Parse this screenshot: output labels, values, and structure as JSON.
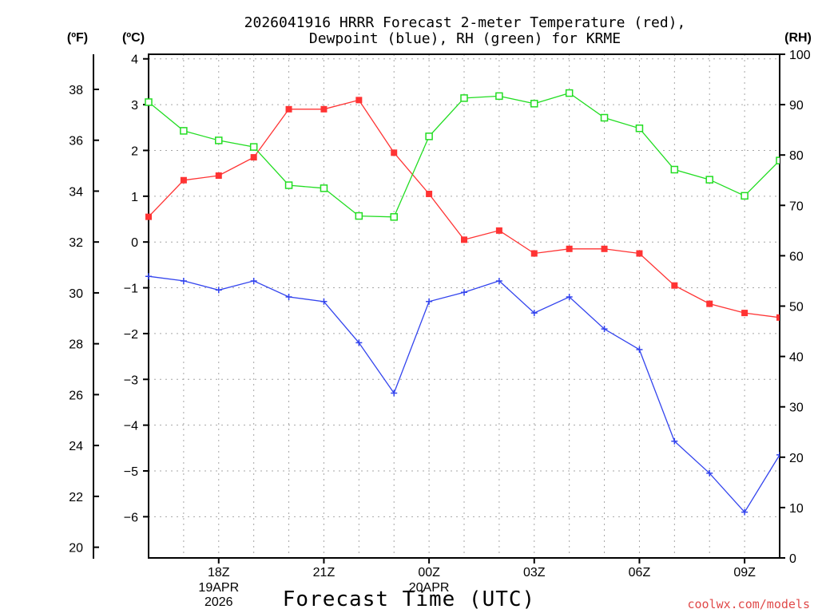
{
  "chart_data": {
    "type": "line",
    "title_line1": "2026041916 HRRR Forecast 2-meter Temperature (red),",
    "title_line2": "Dewpoint (blue), RH (green) for KRME",
    "xlabel": "Forecast Time (UTC)",
    "watermark": "coolwx.com/models",
    "unit_left_f": "(ºF)",
    "unit_left_c": "(ºC)",
    "unit_right": "(RH)",
    "x_hours": [
      16,
      17,
      18,
      19,
      20,
      21,
      22,
      23,
      24,
      25,
      26,
      27,
      28,
      29,
      30,
      31,
      32,
      33,
      34
    ],
    "xlim": [
      16,
      34
    ],
    "ylim_c": [
      -6.9,
      4.1
    ],
    "ylim_rh": [
      0,
      100
    ],
    "yticks_c": [
      "4",
      "3",
      "2",
      "1",
      "0",
      "-1",
      "-2",
      "-3",
      "-4",
      "-5",
      "-6"
    ],
    "yticks_f": [
      "38",
      "36",
      "34",
      "32",
      "30",
      "28",
      "26",
      "24",
      "22",
      "20"
    ],
    "yticks_rh": [
      "100",
      "90",
      "80",
      "70",
      "60",
      "50",
      "40",
      "30",
      "20",
      "10",
      "0"
    ],
    "x_ticks": [
      {
        "hour": 18,
        "label": "18Z"
      },
      {
        "hour": 21,
        "label": "21Z"
      },
      {
        "hour": 24,
        "label": "00Z"
      },
      {
        "hour": 27,
        "label": "03Z"
      },
      {
        "hour": 30,
        "label": "06Z"
      },
      {
        "hour": 33,
        "label": "09Z"
      }
    ],
    "date_labels": [
      {
        "hour": 18,
        "lines": [
          "19APR",
          "2026"
        ]
      },
      {
        "hour": 24,
        "lines": [
          "20APR"
        ]
      }
    ],
    "series": [
      {
        "name": "Temperature",
        "color": "#ff3333",
        "axis": "c",
        "marker": "filled-square",
        "values": [
          0.55,
          1.35,
          1.45,
          1.85,
          2.9,
          2.9,
          3.1,
          1.95,
          1.05,
          0.05,
          0.25,
          -0.25,
          -0.15,
          -0.15,
          -0.25,
          -0.95,
          -1.35,
          -1.55,
          -1.65
        ]
      },
      {
        "name": "Dewpoint",
        "color": "#3344ee",
        "axis": "c",
        "marker": "plus",
        "values": [
          -0.75,
          -0.85,
          -1.05,
          -0.85,
          -1.2,
          -1.3,
          -2.2,
          -3.3,
          -1.3,
          -1.1,
          -0.85,
          -1.55,
          -1.2,
          -1.9,
          -2.35,
          -4.35,
          -5.05,
          -5.9,
          -4.65
        ]
      },
      {
        "name": "RH",
        "color": "#22dd22",
        "axis": "rh",
        "marker": "open-square",
        "values": [
          90.5,
          84.8,
          82.9,
          81.6,
          74,
          73.4,
          67.9,
          67.7,
          83.7,
          91.3,
          91.7,
          90.2,
          92.3,
          87.4,
          85.3,
          77.1,
          75.1,
          71.9,
          78.9
        ]
      }
    ]
  }
}
